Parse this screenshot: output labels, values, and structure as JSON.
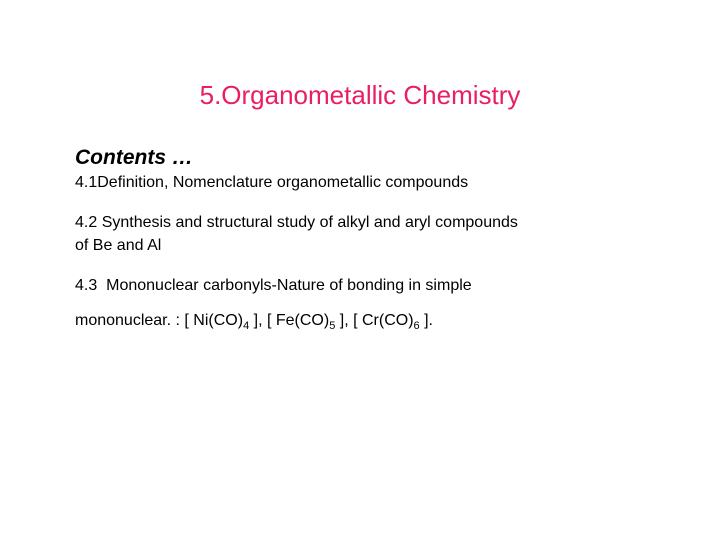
{
  "title": "5.Organometallic Chemistry",
  "contents_heading": "Contents …",
  "line_41_prefix": "4.1Definition, Nomenclature ",
  "line_41_suffix": "organometallic compounds",
  "line_42": "4.2 Synthesis and structural study of alkyl and aryl compounds",
  "line_42b": "of Be and Al",
  "line_43a": "4.3  Mononuclear carbonyls-Nature of bonding in simple",
  "line_43b_p1": "mononuclear. : [ Ni(CO)",
  "line_43b_s1": "4",
  "line_43b_p2": " ], [ Fe(CO)",
  "line_43b_s2": "5",
  "line_43b_p3": " ], [ Cr(CO)",
  "line_43b_s3": "6",
  "line_43b_p4": " ].",
  "colors": {
    "title_color": "#e91e63",
    "text_color": "#000000",
    "background": "#ffffff"
  },
  "typography": {
    "title_fontsize": 26,
    "heading_fontsize": 21,
    "body_fontsize": 16,
    "heading_style": "italic bold"
  }
}
